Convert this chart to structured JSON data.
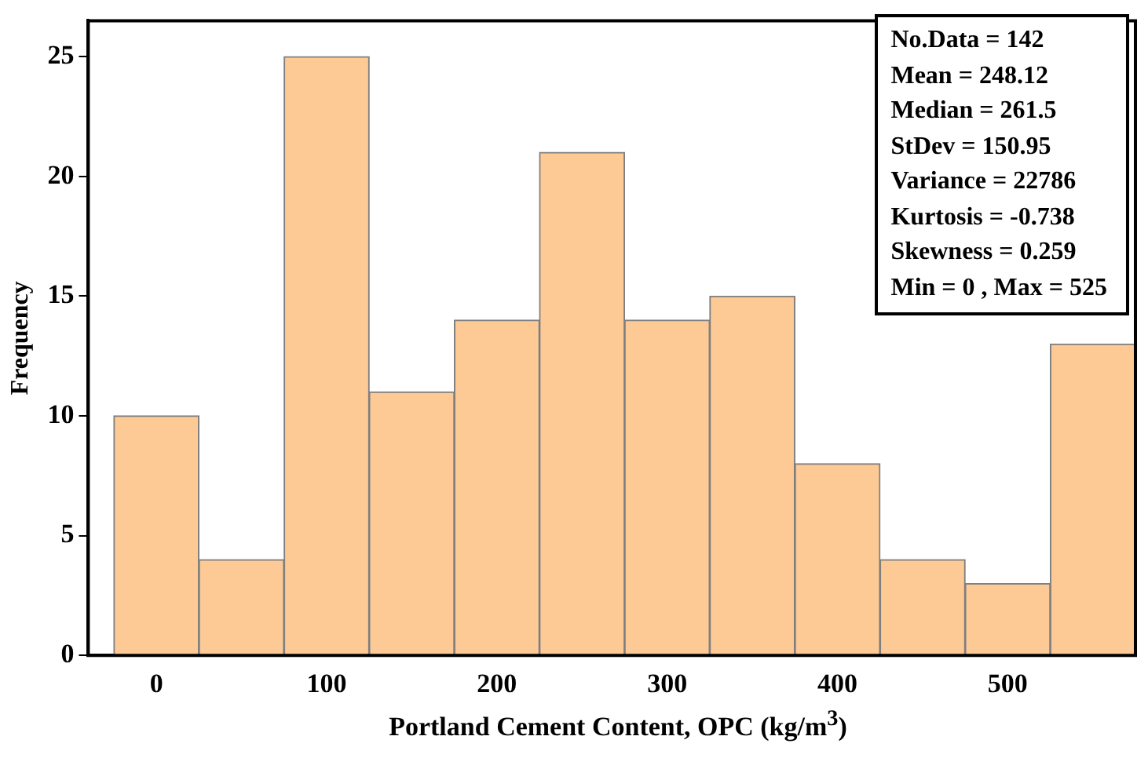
{
  "chart_data": {
    "type": "histogram",
    "xlabel": "Portland Cement Content, OPC (kg/m$^{3}$)",
    "ylabel": "Frequency",
    "bins": [
      -25,
      25,
      75,
      125,
      175,
      225,
      275,
      325,
      375,
      425,
      475,
      525,
      575
    ],
    "values": [
      10,
      4,
      25,
      11,
      14,
      21,
      14,
      15,
      8,
      4,
      3,
      13
    ],
    "color": "#fdca96",
    "xlim": [
      -40,
      575
    ],
    "xticks": [
      0,
      100,
      200,
      300,
      400,
      500
    ],
    "ylim": [
      0,
      26.5
    ],
    "yticks": [
      0,
      5,
      10,
      15,
      20,
      25
    ],
    "grid": false,
    "legend": false,
    "annotations": [
      "No.Data = 142",
      "Mean = 248.12",
      "Median = 261.5",
      "StDev = 150.95",
      "Variance = 22786",
      "Kurtosis = -0.738",
      "Skewness = 0.259",
      "Min = 0 , Max = 525"
    ]
  }
}
